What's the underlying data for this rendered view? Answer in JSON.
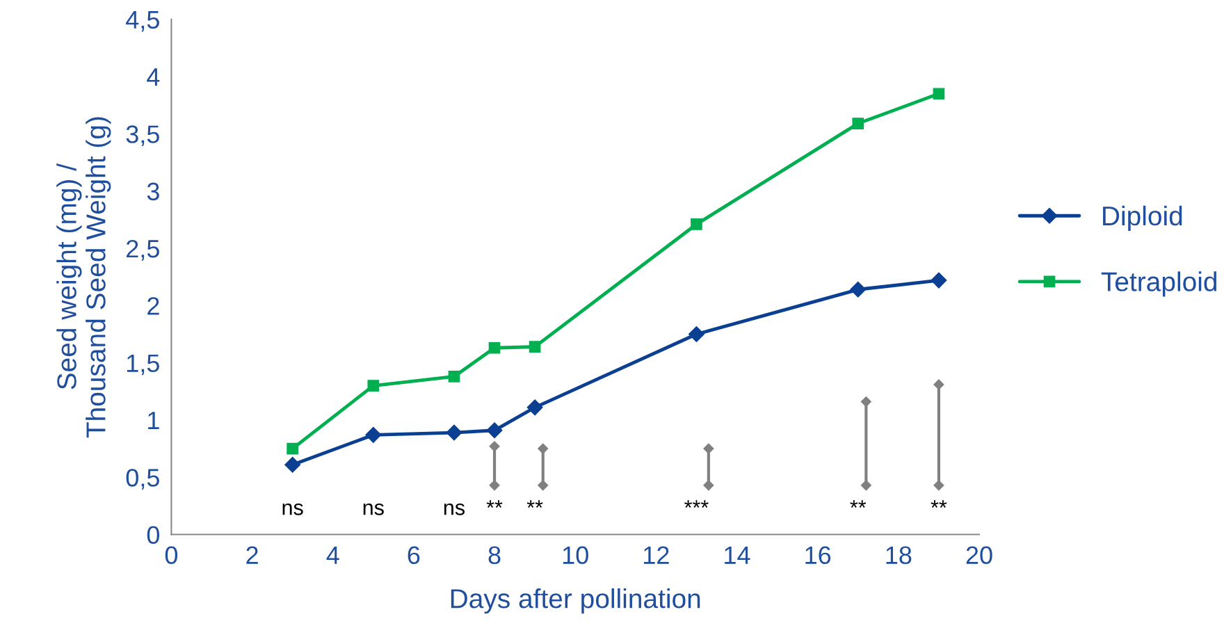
{
  "chart_data": {
    "type": "line",
    "xlabel": "Days after pollination",
    "ylabel": "Seed weight (mg) /\nThousand Seed Weight (g)",
    "xlim": [
      0,
      20
    ],
    "xticks": [
      0,
      2,
      4,
      6,
      8,
      10,
      12,
      14,
      16,
      18,
      20
    ],
    "ylim": [
      0,
      4.5
    ],
    "yticks": [
      0,
      {
        "value": 0.5,
        "label": "0,5"
      },
      1,
      {
        "value": 1.5,
        "label": "1,5"
      },
      2,
      {
        "value": 2.5,
        "label": "2,5"
      },
      3,
      {
        "value": 3.5,
        "label": "3,5"
      },
      4,
      {
        "value": 4.5,
        "label": "4,5"
      }
    ],
    "grid": false,
    "legend": "right",
    "series": [
      {
        "name": "Diploid",
        "color": "#0b3f91",
        "marker": "diamond",
        "x": [
          3,
          5,
          7,
          8,
          9,
          13,
          17,
          19
        ],
        "values": [
          0.61,
          0.87,
          0.89,
          0.91,
          1.11,
          1.75,
          2.14,
          2.22
        ]
      },
      {
        "name": "Tetraploid",
        "color": "#00b050",
        "marker": "square",
        "x": [
          3,
          5,
          7,
          8,
          9,
          13,
          17,
          19
        ],
        "values": [
          0.75,
          1.3,
          1.38,
          1.63,
          1.64,
          2.71,
          3.59,
          3.85
        ]
      },
      {
        "color": "#808080",
        "marker": "diamond",
        "x": [
          8,
          8
        ],
        "values": [
          0.43,
          0.77
        ]
      },
      {
        "color": "#808080",
        "marker": "diamond",
        "x": [
          9.2,
          9.2
        ],
        "values": [
          0.43,
          0.75
        ]
      },
      {
        "color": "#808080",
        "marker": "diamond",
        "x": [
          13.3,
          13.3
        ],
        "values": [
          0.43,
          0.75
        ]
      },
      {
        "color": "#808080",
        "marker": "diamond",
        "x": [
          17.2,
          17.2
        ],
        "values": [
          0.43,
          1.16
        ]
      },
      {
        "color": "#808080",
        "marker": "diamond",
        "x": [
          19,
          19
        ],
        "values": [
          0.43,
          1.31
        ]
      }
    ],
    "annotations": [
      "ns",
      "ns",
      "ns",
      "**",
      "**",
      "***",
      "**",
      "**"
    ]
  }
}
